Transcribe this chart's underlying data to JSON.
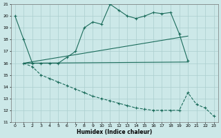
{
  "xlabel": "Humidex (Indice chaleur)",
  "background_color": "#cce8e8",
  "grid_color": "#aacece",
  "line_color": "#1a6b5a",
  "xlim": [
    -0.5,
    23.5
  ],
  "ylim": [
    11,
    21
  ],
  "yticks": [
    11,
    12,
    13,
    14,
    15,
    16,
    17,
    18,
    19,
    20,
    21
  ],
  "xticks": [
    0,
    1,
    2,
    3,
    4,
    5,
    6,
    7,
    8,
    9,
    10,
    11,
    12,
    13,
    14,
    15,
    16,
    17,
    18,
    19,
    20,
    21,
    22,
    23
  ],
  "line1_x": [
    0,
    1,
    2,
    3,
    4,
    5,
    6,
    7,
    8,
    9,
    10,
    11,
    12,
    13,
    14,
    15,
    16,
    17,
    18,
    19,
    20
  ],
  "line1_y": [
    20,
    18,
    16,
    16,
    16,
    16,
    16.5,
    17,
    19,
    19.5,
    19.3,
    21,
    20.5,
    20,
    19.8,
    20,
    20.3,
    20.2,
    20.3,
    18.5,
    16.2
  ],
  "line2_x": [
    1,
    20
  ],
  "line2_y": [
    16,
    18.3
  ],
  "line3_x": [
    1,
    20
  ],
  "line3_y": [
    16,
    16.1
  ],
  "line4_x": [
    1,
    2,
    3,
    4,
    5,
    6,
    7,
    8,
    9,
    10,
    11,
    12,
    13,
    14,
    15,
    16,
    17,
    18,
    19,
    20,
    21,
    22,
    23
  ],
  "line4_y": [
    16,
    15.7,
    15,
    14.7,
    14.4,
    14.1,
    13.8,
    13.5,
    13.2,
    13.0,
    12.8,
    12.6,
    12.4,
    12.2,
    12.1,
    12.0,
    12.0,
    12.0,
    12.0,
    13.5,
    12.5,
    12.2,
    11.5
  ]
}
